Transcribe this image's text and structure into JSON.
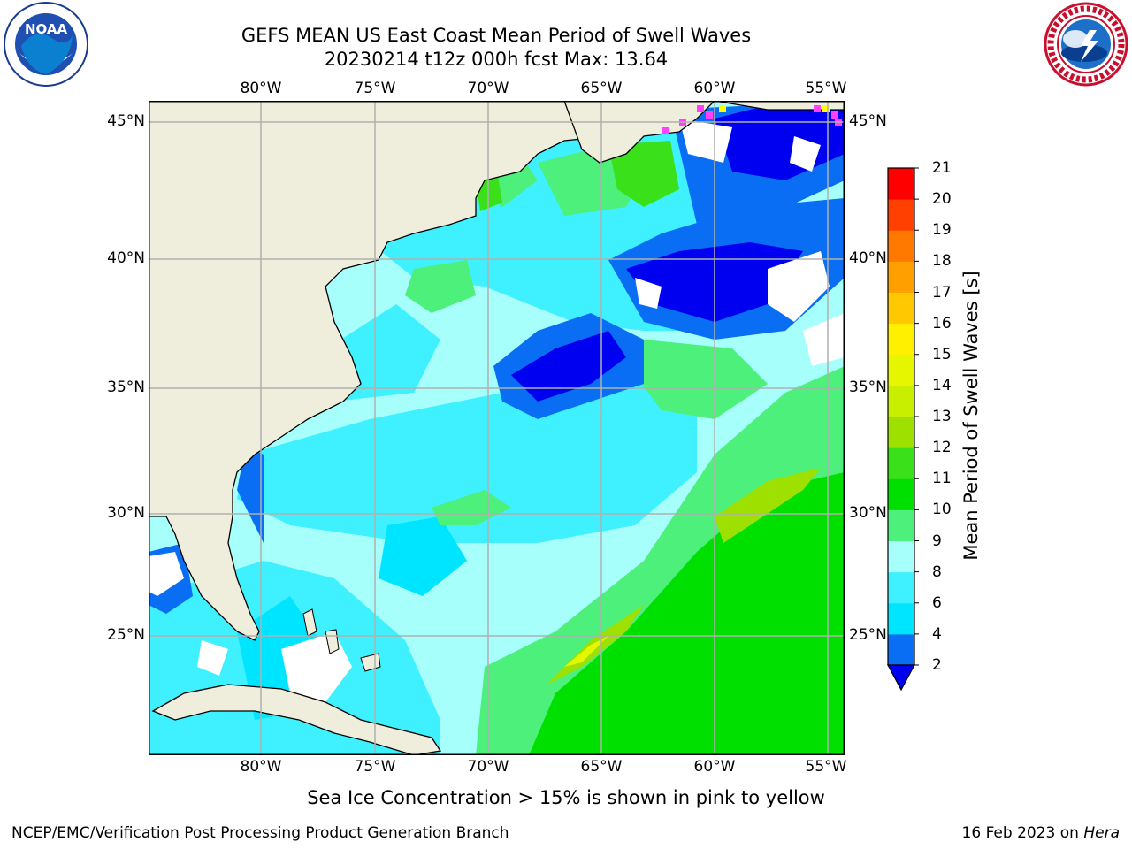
{
  "title": {
    "line1": "GEFS MEAN US East Coast Mean Period of Swell Waves",
    "line2": "20230214 t12z 000h fcst   Max: 13.64"
  },
  "logos": {
    "left": {
      "icon": "noaa-logo",
      "text": "NOAA",
      "ring_text": "NATIONAL OCEANIC AND ATMOSPHERIC ADMINISTRATION · U.S. DEPARTMENT OF COMMERCE"
    },
    "right": {
      "icon": "nws-logo",
      "ring_text": "NATIONAL WEATHER SERVICE"
    }
  },
  "map": {
    "lon_labels": [
      "80°W",
      "75°W",
      "70°W",
      "65°W",
      "60°W",
      "55°W"
    ],
    "lat_labels": [
      "45°N",
      "40°N",
      "35°N",
      "30°N",
      "25°N"
    ],
    "lon_range": [
      -85,
      -54
    ],
    "lat_range": [
      20.5,
      45.8
    ],
    "colors": {
      "land": "#efeedd",
      "grid": "#b0b0b0",
      "coast": "#000000"
    }
  },
  "colorbar": {
    "title": "Mean Period of Swell Waves [s]",
    "levels": [
      "2",
      "4",
      "6",
      "8",
      "9",
      "10",
      "11",
      "12",
      "13",
      "14",
      "15",
      "16",
      "17",
      "18",
      "19",
      "20",
      "21"
    ],
    "colors": [
      "#0a6ef5",
      "#00e5ff",
      "#3ff0ff",
      "#a6fffa",
      "#4cf07a",
      "#00e000",
      "#3ae01a",
      "#9ee000",
      "#c8ee00",
      "#e6f600",
      "#fff000",
      "#ffc800",
      "#ffa000",
      "#ff7800",
      "#ff4000",
      "#ff0000"
    ],
    "under_color": "#0000f0"
  },
  "caption": "Sea Ice Concentration > 15% is shown in pink to yellow",
  "footer": {
    "left": "NCEP/EMC/Verification Post Processing Product Generation Branch",
    "right_text": "16 Feb 2023 on ",
    "right_host": "Hera"
  }
}
